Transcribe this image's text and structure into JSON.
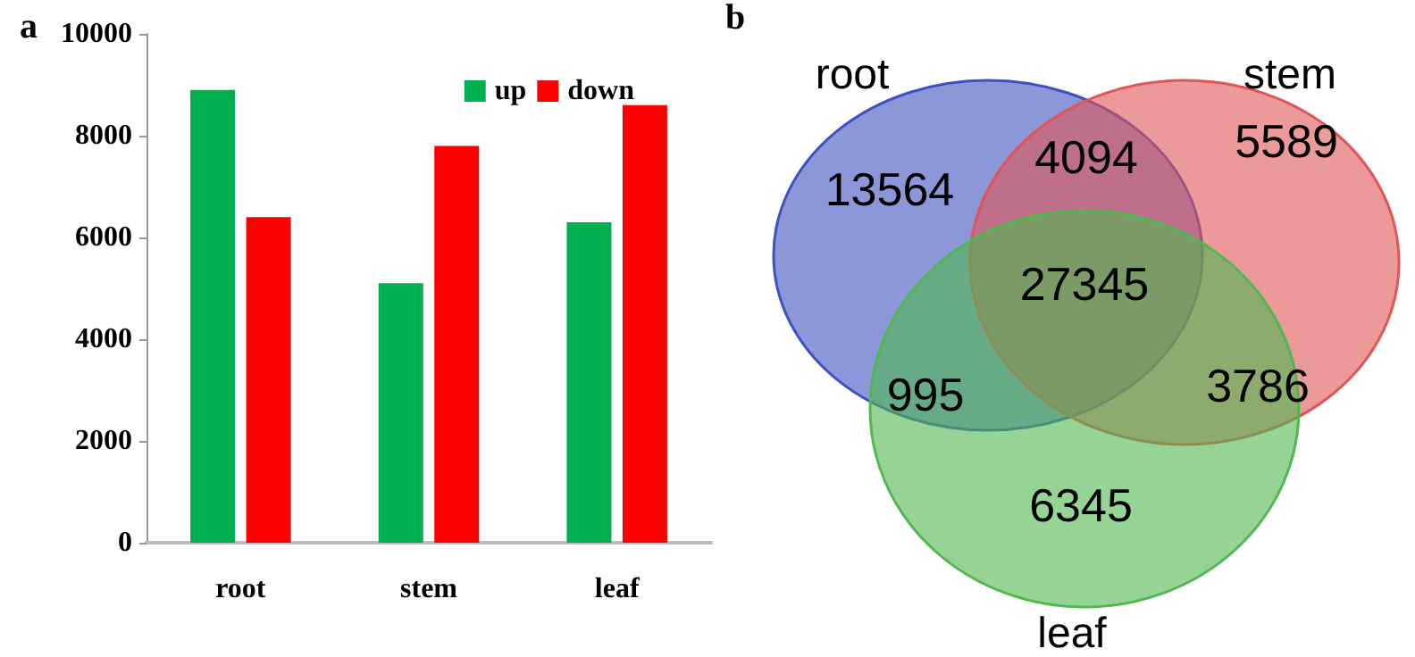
{
  "chart_data": [
    {
      "type": "bar",
      "title": "a",
      "categories": [
        "root",
        "stem",
        "leaf"
      ],
      "series": [
        {
          "name": "up",
          "color": "#00b050",
          "values": [
            8900,
            5100,
            6300
          ]
        },
        {
          "name": "down",
          "color": "#ff0000",
          "values": [
            6400,
            7800,
            8600
          ]
        }
      ],
      "ylim": [
        0,
        10000
      ],
      "yticks": [
        0,
        2000,
        4000,
        6000,
        8000,
        10000
      ],
      "grid": false,
      "legend": "top right"
    },
    {
      "type": "other",
      "title": "b",
      "annotations": [
        "root",
        "stem",
        "leaf",
        "13564",
        "5589",
        "6345",
        "4094",
        "995",
        "3786",
        "27345"
      ]
    }
  ]
}
